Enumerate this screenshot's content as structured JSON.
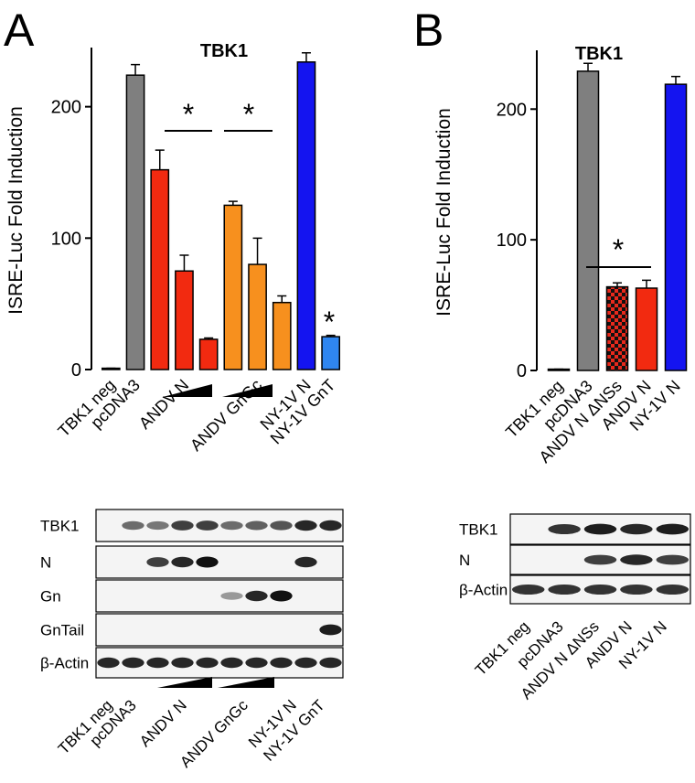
{
  "chart_data": [
    {
      "type": "bar",
      "title": "TBK1",
      "y_label": "ISRE-Luc Fold Induction",
      "categories": [
        "TBK1 neg",
        "pcDNA3",
        null,
        "ANDV N",
        null,
        null,
        "ANDV GnGc",
        null,
        "NY-1V N",
        "NY-1V GnT"
      ],
      "values": [
        1,
        224,
        152,
        75,
        23,
        125,
        80,
        51,
        234,
        25
      ],
      "errors": [
        0,
        8,
        15,
        12,
        1,
        3,
        20,
        5,
        7,
        1
      ],
      "colors": [
        "#7f7f7f",
        "#7f7f7f",
        "#f22a10",
        "#f22a10",
        "#f22a10",
        "#f7901e",
        "#f7901e",
        "#f7901e",
        "#1414f0",
        "#2f86f0"
      ],
      "ylim": [
        0,
        245
      ],
      "yticks": [
        0,
        100,
        200
      ],
      "annotations": [
        "*",
        "*",
        "*"
      ]
    },
    {
      "type": "bar",
      "title": "TBK1",
      "y_label": "ISRE-Luc Fold Induction",
      "categories": [
        "TBK1 neg",
        "pcDNA3",
        "ANDV N ΔNSs",
        "ANDV N",
        "NY-1V N"
      ],
      "values": [
        1,
        229,
        64,
        63,
        219
      ],
      "errors": [
        0,
        6,
        3,
        6,
        6
      ],
      "colors": [
        "#7f7f7f",
        "#7f7f7f",
        "#e8291c",
        "#f22a10",
        "#1414f0"
      ],
      "checkered_bars": [
        "ANDV N ΔNSs"
      ],
      "ylim": [
        0,
        245
      ],
      "yticks": [
        0,
        100,
        200
      ],
      "annotations": [
        "*"
      ]
    }
  ],
  "panels": [
    {
      "letter": "A",
      "blot": {
        "rows": [
          "TBK1",
          "N",
          "Gn",
          "GnTail",
          "β-Actin"
        ],
        "lanes": [
          "TBK1 neg",
          "pcDNA3",
          "ANDV N",
          "ANDV GnGc",
          "NY-1V N",
          "NY-1V GnT"
        ]
      }
    },
    {
      "letter": "B",
      "blot": {
        "rows": [
          "TBK1",
          "N",
          "β-Actin"
        ],
        "lanes": [
          "TBK1 neg",
          "pcDNA3",
          "ANDV N ΔNSs",
          "ANDV N",
          "NY-1V N"
        ]
      }
    }
  ]
}
